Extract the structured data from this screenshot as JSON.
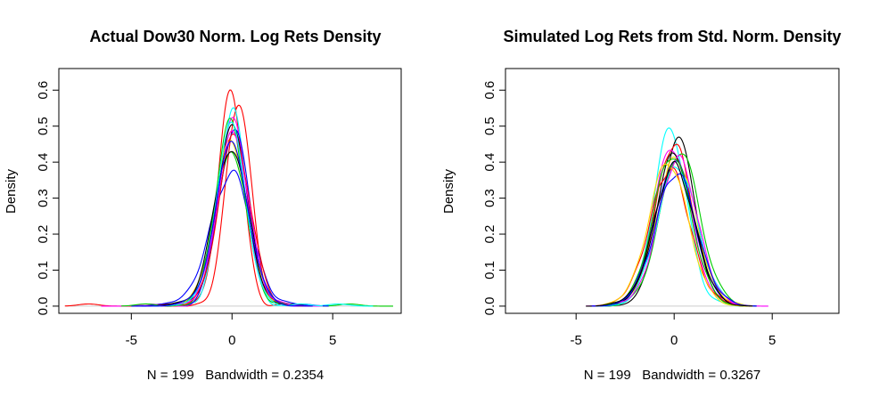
{
  "chart_data": [
    {
      "type": "line",
      "title": "Actual Dow30 Norm. Log Rets Density",
      "ylabel": "Density",
      "xlabel": "N = 199   Bandwidth = 0.2354",
      "xlim": [
        -8.6,
        8.4
      ],
      "ylim": [
        -0.02,
        0.66
      ],
      "xticks": [
        -5,
        0,
        5
      ],
      "yticks": [
        0.0,
        0.1,
        0.2,
        0.3,
        0.4,
        0.5,
        0.6
      ],
      "ytick_labels": [
        "0.0",
        "0.1",
        "0.2",
        "0.3",
        "0.4",
        "0.5",
        "0.6"
      ],
      "series": [
        {
          "color": "#ff0000",
          "peak_x": -0.05,
          "peak": 0.6,
          "sd_left": 0.62,
          "sd_right": 0.6,
          "tail_left": -8.3,
          "tail_right": 4.2
        },
        {
          "color": "#ff0000",
          "peak_x": 0.35,
          "peak": 0.57,
          "sd_left": 0.65,
          "sd_right": 0.6,
          "tail_left": -4.5,
          "tail_right": 4.5
        },
        {
          "color": "#00cd00",
          "peak_x": 0.0,
          "peak": 0.42,
          "sd_left": 0.85,
          "sd_right": 0.85,
          "tail_left": -4.0,
          "tail_right": 8.0
        },
        {
          "color": "#0000ff",
          "peak_x": 0.0,
          "peak": 0.37,
          "sd_left": 1.05,
          "sd_right": 0.95,
          "tail_left": -4.8,
          "tail_right": 4.3
        },
        {
          "color": "#00ffff",
          "peak_x": 0.05,
          "peak": 0.54,
          "sd_left": 0.68,
          "sd_right": 0.68,
          "tail_left": -4.2,
          "tail_right": 7.0
        },
        {
          "color": "#ff00ff",
          "peak_x": 0.0,
          "peak": 0.52,
          "sd_left": 0.7,
          "sd_right": 0.72,
          "tail_left": -6.5,
          "tail_right": 4.5
        },
        {
          "color": "#000000",
          "peak_x": 0.05,
          "peak": 0.5,
          "sd_left": 0.75,
          "sd_right": 0.75,
          "tail_left": -4.5,
          "tail_right": 4.0
        },
        {
          "color": "#ffd700",
          "peak_x": -0.05,
          "peak": 0.46,
          "sd_left": 0.8,
          "sd_right": 0.8,
          "tail_left": -4.0,
          "tail_right": 4.0
        },
        {
          "color": "#0000ff",
          "peak_x": 0.1,
          "peak": 0.49,
          "sd_left": 0.76,
          "sd_right": 0.76,
          "tail_left": -5.0,
          "tail_right": 4.8
        },
        {
          "color": "#00cd00",
          "peak_x": -0.1,
          "peak": 0.51,
          "sd_left": 0.72,
          "sd_right": 0.74,
          "tail_left": -5.5,
          "tail_right": 4.5
        },
        {
          "color": "#ff0000",
          "peak_x": 0.1,
          "peak": 0.47,
          "sd_left": 0.78,
          "sd_right": 0.8,
          "tail_left": -4.0,
          "tail_right": 4.0
        },
        {
          "color": "#000000",
          "peak_x": -0.05,
          "peak": 0.44,
          "sd_left": 0.85,
          "sd_right": 0.82,
          "tail_left": -4.5,
          "tail_right": 4.0
        },
        {
          "color": "#ff00ff",
          "peak_x": 0.05,
          "peak": 0.48,
          "sd_left": 0.78,
          "sd_right": 0.78,
          "tail_left": -4.5,
          "tail_right": 4.5
        },
        {
          "color": "#00ffff",
          "peak_x": -0.05,
          "peak": 0.5,
          "sd_left": 0.74,
          "sd_right": 0.74,
          "tail_left": -4.0,
          "tail_right": 4.5
        },
        {
          "color": "#0000ff",
          "peak_x": 0.0,
          "peak": 0.45,
          "sd_left": 0.82,
          "sd_right": 0.8,
          "tail_left": -4.5,
          "tail_right": 4.0
        }
      ]
    },
    {
      "type": "line",
      "title": "Simulated Log Rets from Std. Norm. Density",
      "ylabel": "Density",
      "xlabel": "N = 199   Bandwidth = 0.3267",
      "xlim": [
        -8.6,
        8.4
      ],
      "ylim": [
        -0.02,
        0.66
      ],
      "xticks": [
        -5,
        0,
        5
      ],
      "yticks": [
        0.0,
        0.1,
        0.2,
        0.3,
        0.4,
        0.5,
        0.6
      ],
      "ytick_labels": [
        "0.0",
        "0.1",
        "0.2",
        "0.3",
        "0.4",
        "0.5",
        "0.6"
      ],
      "series": [
        {
          "color": "#00ffff",
          "peak_x": -0.2,
          "peak": 0.49,
          "sd_left": 0.85,
          "sd_right": 0.85,
          "tail_left": -4.2,
          "tail_right": 3.8
        },
        {
          "color": "#000000",
          "peak_x": 0.2,
          "peak": 0.46,
          "sd_left": 0.9,
          "sd_right": 0.9,
          "tail_left": -4.0,
          "tail_right": 4.0
        },
        {
          "color": "#ff0000",
          "peak_x": 0.0,
          "peak": 0.45,
          "sd_left": 0.95,
          "sd_right": 0.95,
          "tail_left": -3.8,
          "tail_right": 4.0
        },
        {
          "color": "#ff00ff",
          "peak_x": -0.1,
          "peak": 0.44,
          "sd_left": 0.95,
          "sd_right": 0.95,
          "tail_left": -4.5,
          "tail_right": 4.8
        },
        {
          "color": "#00cd00",
          "peak_x": 0.3,
          "peak": 0.43,
          "sd_left": 1.0,
          "sd_right": 1.0,
          "tail_left": -4.0,
          "tail_right": 4.2
        },
        {
          "color": "#ffd700",
          "peak_x": 0.1,
          "peak": 0.41,
          "sd_left": 1.0,
          "sd_right": 1.0,
          "tail_left": -4.0,
          "tail_right": 4.0
        },
        {
          "color": "#0000ff",
          "peak_x": 0.0,
          "peak": 0.4,
          "sd_left": 1.0,
          "sd_right": 1.0,
          "tail_left": -4.3,
          "tail_right": 4.2
        },
        {
          "color": "#000000",
          "peak_x": 0.0,
          "peak": 0.42,
          "sd_left": 0.95,
          "sd_right": 0.95,
          "tail_left": -4.5,
          "tail_right": 4.0
        },
        {
          "color": "#00ffff",
          "peak_x": 0.15,
          "peak": 0.39,
          "sd_left": 1.0,
          "sd_right": 1.02,
          "tail_left": -4.0,
          "tail_right": 4.0
        },
        {
          "color": "#ff0000",
          "peak_x": -0.2,
          "peak": 0.38,
          "sd_left": 1.05,
          "sd_right": 1.0,
          "tail_left": -4.0,
          "tail_right": 4.0
        },
        {
          "color": "#ff00ff",
          "peak_x": 0.2,
          "peak": 0.41,
          "sd_left": 1.0,
          "sd_right": 0.98,
          "tail_left": -4.0,
          "tail_right": 4.0
        },
        {
          "color": "#00cd00",
          "peak_x": -0.1,
          "peak": 0.42,
          "sd_left": 0.97,
          "sd_right": 0.97,
          "tail_left": -4.0,
          "tail_right": 4.0
        },
        {
          "color": "#0000ff",
          "peak_x": 0.1,
          "peak": 0.37,
          "sd_left": 1.05,
          "sd_right": 1.05,
          "tail_left": -4.2,
          "tail_right": 4.2
        },
        {
          "color": "#ffd700",
          "peak_x": -0.3,
          "peak": 0.4,
          "sd_left": 1.0,
          "sd_right": 1.0,
          "tail_left": -4.0,
          "tail_right": 4.0
        },
        {
          "color": "#000000",
          "peak_x": 0.0,
          "peak": 0.39,
          "sd_left": 1.02,
          "sd_right": 1.02,
          "tail_left": -4.0,
          "tail_right": 4.0
        }
      ]
    }
  ]
}
